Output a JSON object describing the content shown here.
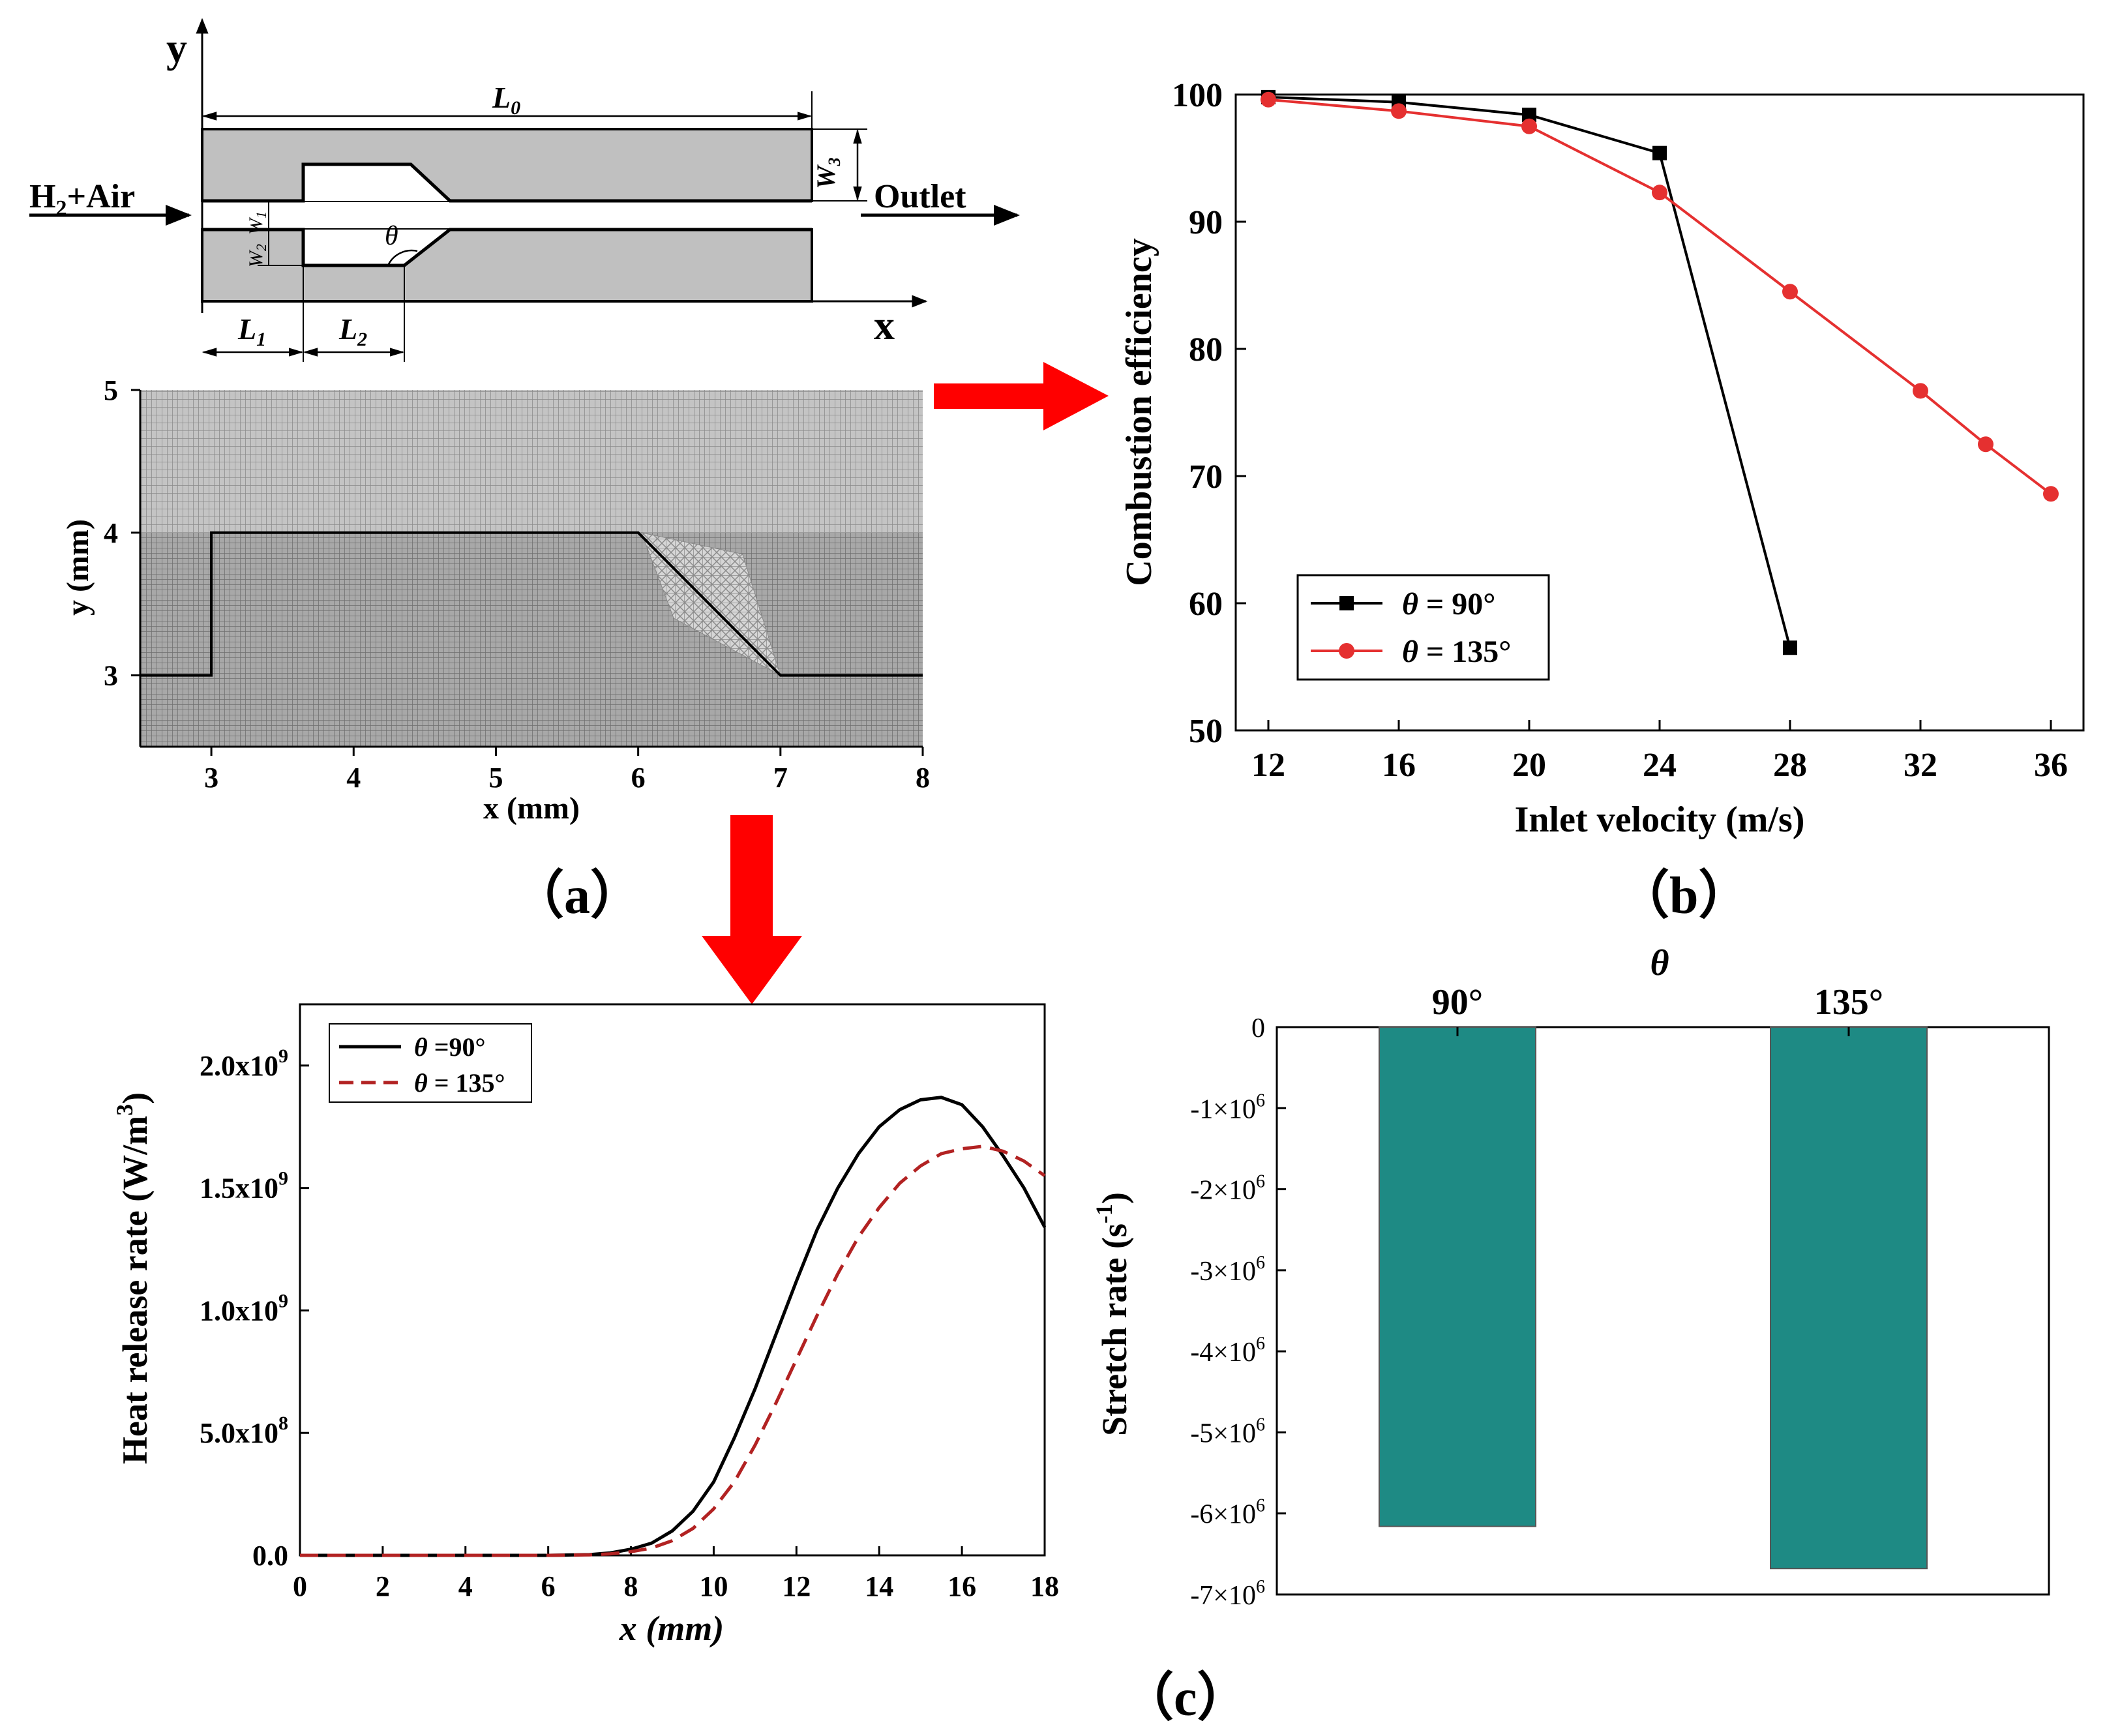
{
  "panel_labels": {
    "a": "（a）",
    "b": "（b）",
    "c": "（c）"
  },
  "schematic": {
    "axis_x": "x",
    "axis_y": "y",
    "inlet": "H",
    "inlet_sub": "2",
    "inlet_rest": "+Air",
    "outlet": "Outlet",
    "L0": "L",
    "L0_sub": "0",
    "L1": "L",
    "L1_sub": "1",
    "L2": "L",
    "L2_sub": "2",
    "W1": "W",
    "W1_sub": "1",
    "W2": "W",
    "W2_sub": "2",
    "W3": "W",
    "W3_sub": "3",
    "theta": "θ"
  },
  "colors": {
    "arrow": "#ff0000",
    "bar": "#1e8a84",
    "series_black": "#000000",
    "series_red": "#e53030",
    "dashed_red": "#b22222",
    "wall": "#c0c0c0",
    "mesh": "#8c8c8c"
  },
  "chart_data": [
    {
      "id": "mesh",
      "type": "mesh",
      "xlabel": "x (mm)",
      "ylabel": "y (mm)",
      "xlim": [
        2.5,
        8
      ],
      "ylim": [
        2.5,
        5
      ],
      "xticks": [
        "3",
        "4",
        "5",
        "6",
        "7",
        "8"
      ],
      "yticks": [
        "3",
        "4",
        "5"
      ],
      "xtick_values": [
        3,
        4,
        5,
        6,
        7,
        8
      ],
      "ytick_values": [
        3,
        4,
        5
      ],
      "wall_x": [
        2.5,
        3,
        3,
        6,
        7,
        8
      ],
      "wall_y": [
        3,
        3,
        4,
        4,
        3,
        3
      ]
    },
    {
      "id": "efficiency",
      "type": "line",
      "xlabel": "Inlet velocity (m/s)",
      "ylabel": "Combustion efficiency",
      "xlim": [
        11,
        37
      ],
      "ylim": [
        50,
        100
      ],
      "xticks": [
        "12",
        "16",
        "20",
        "24",
        "28",
        "32",
        "36"
      ],
      "yticks": [
        "50",
        "60",
        "70",
        "80",
        "90",
        "100"
      ],
      "xtick_values": [
        12,
        16,
        20,
        24,
        28,
        32,
        36
      ],
      "ytick_values": [
        50,
        60,
        70,
        80,
        90,
        100
      ],
      "legend_symbol": "θ",
      "series": [
        {
          "name": " = 90°",
          "marker": "square",
          "x": [
            12,
            16,
            20,
            24,
            28
          ],
          "values": [
            99.8,
            99.4,
            98.4,
            95.4,
            56.5
          ]
        },
        {
          "name": " = 135°",
          "marker": "circle",
          "x": [
            12,
            16,
            20,
            24,
            28,
            32,
            34,
            36
          ],
          "values": [
            99.6,
            98.7,
            97.5,
            92.3,
            84.5,
            76.7,
            72.5,
            68.6
          ]
        }
      ]
    },
    {
      "id": "heat",
      "type": "line",
      "xlabel": "x (mm)",
      "ylabel": "Heat release rate (W/m",
      "ylabel_sup": "3",
      "ylabel_end": ")",
      "xlim": [
        0,
        18
      ],
      "ylim": [
        0,
        2.25
      ],
      "xticks": [
        "0",
        "2",
        "4",
        "6",
        "8",
        "10",
        "12",
        "14",
        "16",
        "18"
      ],
      "xtick_values": [
        0,
        2,
        4,
        6,
        8,
        10,
        12,
        14,
        16,
        18
      ],
      "ytick_values": [
        0,
        0.5,
        1.0,
        1.5,
        2.0
      ],
      "ytick_mant": [
        "0.0",
        "5.0x10",
        "1.0x10",
        "1.5x10",
        "2.0x10"
      ],
      "ytick_exp": [
        "",
        "8",
        "9",
        "9",
        "9"
      ],
      "legend_symbol": "θ",
      "series": [
        {
          "name": " =90°",
          "style": "solid",
          "x": [
            0,
            6,
            7,
            7.5,
            8,
            8.5,
            9,
            9.5,
            10,
            10.5,
            11,
            11.5,
            12,
            12.5,
            13,
            13.5,
            14,
            14.5,
            15,
            15.5,
            16,
            16.5,
            17,
            17.5,
            18
          ],
          "values": [
            0,
            0,
            0.003,
            0.01,
            0.025,
            0.05,
            0.1,
            0.18,
            0.3,
            0.48,
            0.68,
            0.9,
            1.12,
            1.33,
            1.5,
            1.64,
            1.75,
            1.82,
            1.86,
            1.87,
            1.84,
            1.75,
            1.63,
            1.5,
            1.34
          ]
        },
        {
          "name": " = 135°",
          "style": "dashed",
          "x": [
            0,
            6,
            7,
            7.5,
            8,
            8.5,
            9,
            9.5,
            10,
            10.5,
            11,
            11.5,
            12,
            12.5,
            13,
            13.5,
            14,
            14.5,
            15,
            15.5,
            16,
            16.5,
            17,
            17.5,
            18
          ],
          "values": [
            0,
            0,
            0.002,
            0.006,
            0.015,
            0.03,
            0.06,
            0.11,
            0.19,
            0.3,
            0.45,
            0.62,
            0.8,
            0.98,
            1.15,
            1.3,
            1.42,
            1.52,
            1.59,
            1.64,
            1.66,
            1.67,
            1.65,
            1.61,
            1.55
          ]
        }
      ]
    },
    {
      "id": "stretch",
      "type": "bar",
      "title": "θ",
      "xlabel_top": [
        "90°",
        "135°"
      ],
      "ylabel": "Stretch rate (s",
      "ylabel_sup": "-1",
      "ylabel_end": ")",
      "ylim": [
        -7000000.0,
        0
      ],
      "ytick_values": [
        0,
        -1000000.0,
        -2000000.0,
        -3000000.0,
        -4000000.0,
        -5000000.0,
        -6000000.0,
        -7000000.0
      ],
      "ytick_mant": [
        "0",
        "-1×10",
        "-2×10",
        "-3×10",
        "-4×10",
        "-5×10",
        "-6×10",
        "-7×10"
      ],
      "ytick_exp": [
        "",
        "6",
        "6",
        "6",
        "6",
        "6",
        "6",
        "6"
      ],
      "categories": [
        "90°",
        "135°"
      ],
      "values": [
        -6160000.0,
        -6680000.0
      ]
    }
  ]
}
